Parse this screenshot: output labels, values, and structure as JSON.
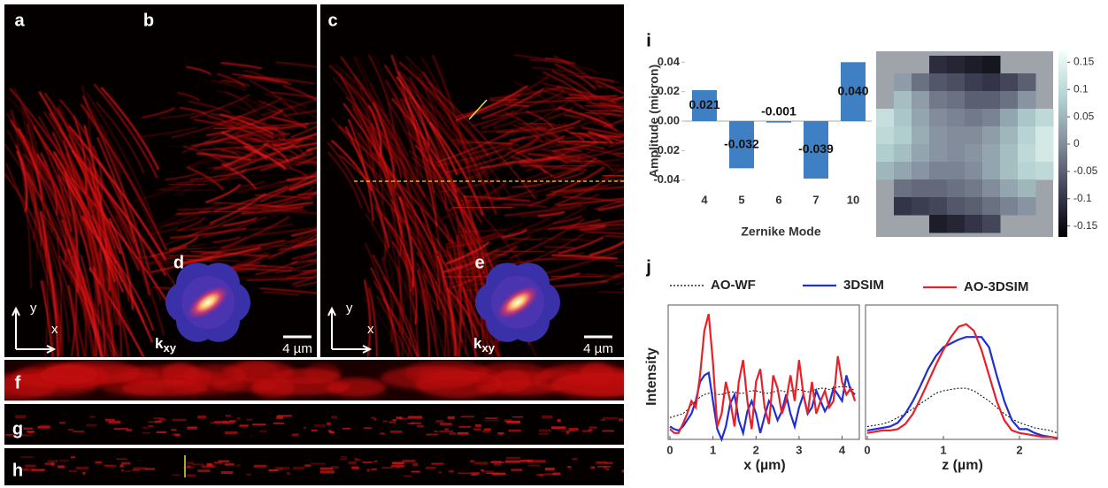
{
  "figure": {
    "panel_labels": [
      "a",
      "b",
      "c",
      "d",
      "e",
      "f",
      "g",
      "h",
      "i",
      "j"
    ],
    "axis_y": "y",
    "axis_x": "x",
    "k_main": "k",
    "k_sub": "xy",
    "scale_bar": "4 µm"
  },
  "chart_data": [
    {
      "type": "bar",
      "ylabel": "Amplitude (micron)",
      "xlabel": "Zernike Mode",
      "categories": [
        "4",
        "5",
        "6",
        "7",
        "10"
      ],
      "values": [
        0.021,
        -0.032,
        -0.001,
        -0.039,
        0.04
      ],
      "value_labels": [
        "0.021",
        "-0.032",
        "-0.001",
        "-0.039",
        "0.040"
      ],
      "color": "#3f7fc4",
      "ylim": [
        -0.045,
        0.045
      ],
      "yticks": [
        0.04,
        0.02,
        {
          "value": 0,
          "label": "0.00"
        },
        -0.02,
        -0.04
      ]
    },
    {
      "type": "heatmap",
      "z": [
        [
          null,
          null,
          null,
          -0.11,
          -0.12,
          -0.13,
          -0.14,
          null,
          null,
          null
        ],
        [
          null,
          0.02,
          -0.03,
          -0.06,
          -0.07,
          -0.09,
          -0.1,
          -0.08,
          -0.05,
          null
        ],
        [
          null,
          0.06,
          0.02,
          -0.02,
          -0.03,
          -0.05,
          -0.05,
          -0.03,
          0.01,
          null
        ],
        [
          0.11,
          0.07,
          0.03,
          0,
          -0.01,
          -0.02,
          -0.01,
          0.03,
          0.07,
          0.1
        ],
        [
          0.1,
          0.08,
          0.04,
          0.01,
          0,
          0,
          0.02,
          0.05,
          0.09,
          0.13
        ],
        [
          0.08,
          0.06,
          0.03,
          0.01,
          0,
          0.01,
          0.03,
          0.06,
          0.1,
          0.13
        ],
        [
          0.05,
          0.03,
          0.01,
          -0.01,
          -0.01,
          0,
          0.03,
          0.06,
          0.09,
          0.1
        ],
        [
          null,
          -0.03,
          -0.04,
          -0.04,
          -0.03,
          -0.02,
          0,
          0.03,
          0.05,
          null
        ],
        [
          null,
          -0.1,
          -0.09,
          -0.08,
          -0.06,
          -0.05,
          -0.03,
          -0.01,
          0.01,
          null
        ],
        [
          null,
          null,
          null,
          -0.13,
          -0.12,
          -0.1,
          -0.08,
          null,
          null,
          null
        ]
      ],
      "zlim": [
        -0.17,
        0.17
      ],
      "zticks": [
        0.15,
        0.1,
        0.05,
        0,
        -0.05,
        -0.1,
        -0.15
      ]
    },
    {
      "type": "line",
      "xlabel": "x (µm)",
      "ylabel": "Intensity",
      "x": [
        0,
        0.1,
        0.2,
        0.3,
        0.4,
        0.5,
        0.6,
        0.7,
        0.8,
        0.9,
        1,
        1.1,
        1.2,
        1.3,
        1.4,
        1.5,
        1.6,
        1.7,
        1.8,
        1.9,
        2,
        2.1,
        2.2,
        2.3,
        2.4,
        2.5,
        2.6,
        2.7,
        2.8,
        2.9,
        3,
        3.1,
        3.2,
        3.3,
        3.4,
        3.5,
        3.6,
        3.7,
        3.8,
        3.9,
        4,
        4.1,
        4.2,
        4.3
      ],
      "xlim": [
        0,
        4.4
      ],
      "xticks": [
        0,
        1,
        2,
        3,
        4
      ],
      "ylim": [
        0,
        1.05
      ],
      "series": [
        {
          "name": "AO-WF",
          "color": "#000000",
          "dash": true,
          "values": [
            0.17,
            0.18,
            0.19,
            0.2,
            0.23,
            0.27,
            0.3,
            0.33,
            0.35,
            0.36,
            0.36,
            0.35,
            0.35,
            0.36,
            0.37,
            0.37,
            0.36,
            0.36,
            0.37,
            0.38,
            0.38,
            0.37,
            0.36,
            0.36,
            0.37,
            0.38,
            0.38,
            0.37,
            0.38,
            0.38,
            0.39,
            0.38,
            0.37,
            0.38,
            0.39,
            0.4,
            0.4,
            0.39,
            0.4,
            0.41,
            0.41,
            0.41,
            0.4,
            0.38
          ]
        },
        {
          "name": "3DSIM",
          "color": "#1f2fd0",
          "dash": false,
          "values": [
            0.1,
            0.08,
            0.07,
            0.1,
            0.15,
            0.2,
            0.3,
            0.45,
            0.5,
            0.52,
            0.3,
            0.08,
            0,
            0.1,
            0.28,
            0.35,
            0.15,
            0.05,
            0.22,
            0.3,
            0.2,
            0.05,
            0.18,
            0.3,
            0.25,
            0.15,
            0.22,
            0.35,
            0.2,
            0.1,
            0.25,
            0.35,
            0.2,
            0.25,
            0.38,
            0.3,
            0.22,
            0.28,
            0.4,
            0.35,
            0.3,
            0.5,
            0.38,
            0.35
          ]
        },
        {
          "name": "AO-3DSIM",
          "color": "#e8202a",
          "dash": false,
          "values": [
            0.08,
            0.05,
            0.05,
            0.12,
            0.2,
            0.3,
            0.25,
            0.5,
            0.85,
            0.98,
            0.6,
            0.1,
            0.2,
            0.45,
            0.3,
            0.1,
            0.45,
            0.62,
            0.3,
            0.08,
            0.45,
            0.55,
            0.25,
            0.12,
            0.5,
            0.4,
            0.2,
            0.3,
            0.5,
            0.3,
            0.62,
            0.35,
            0.2,
            0.45,
            0.2,
            0.3,
            0.38,
            0.25,
            0.3,
            0.65,
            0.45,
            0.35,
            0.4,
            0.3
          ]
        }
      ]
    },
    {
      "type": "line",
      "xlabel": "z (µm)",
      "x": [
        0,
        0.1,
        0.2,
        0.3,
        0.4,
        0.5,
        0.6,
        0.7,
        0.8,
        0.9,
        1,
        1.1,
        1.2,
        1.3,
        1.4,
        1.5,
        1.6,
        1.7,
        1.8,
        1.9,
        2,
        2.1,
        2.2,
        2.3,
        2.4,
        2.5
      ],
      "xlim": [
        0,
        2.5
      ],
      "xticks": [
        0,
        1,
        2
      ],
      "ylim": [
        0,
        1.05
      ],
      "series": [
        {
          "color": "#000000",
          "dash": true,
          "values": [
            0.1,
            0.11,
            0.12,
            0.14,
            0.17,
            0.2,
            0.24,
            0.28,
            0.32,
            0.36,
            0.38,
            0.39,
            0.4,
            0.4,
            0.38,
            0.34,
            0.3,
            0.25,
            0.2,
            0.16,
            0.13,
            0.11,
            0.09,
            0.08,
            0.07,
            0.05
          ]
        },
        {
          "color": "#1f2fd0",
          "dash": false,
          "values": [
            0.07,
            0.08,
            0.09,
            0.1,
            0.13,
            0.2,
            0.3,
            0.42,
            0.55,
            0.65,
            0.72,
            0.75,
            0.78,
            0.8,
            0.8,
            0.8,
            0.72,
            0.5,
            0.3,
            0.15,
            0.08,
            0.08,
            0.05,
            0.03,
            0.02,
            0.01
          ]
        },
        {
          "color": "#e8202a",
          "dash": false,
          "values": [
            0.05,
            0.06,
            0.07,
            0.07,
            0.08,
            0.12,
            0.2,
            0.32,
            0.45,
            0.58,
            0.7,
            0.8,
            0.88,
            0.9,
            0.85,
            0.7,
            0.5,
            0.3,
            0.15,
            0.07,
            0.05,
            0.04,
            0.03,
            0.02,
            0.02,
            0.01
          ]
        }
      ]
    }
  ]
}
